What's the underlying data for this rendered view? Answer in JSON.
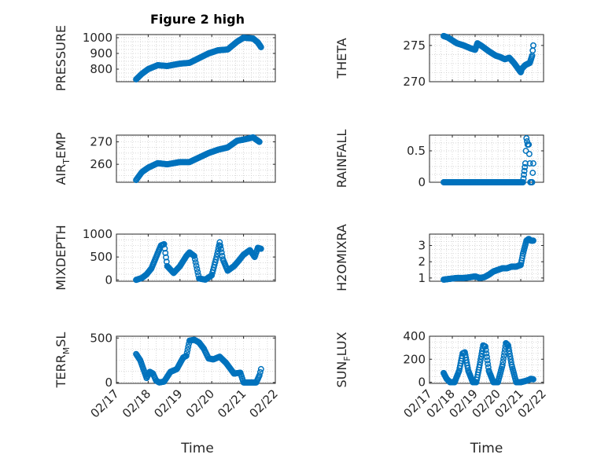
{
  "figure_title": "Figure 2 high",
  "colors": {
    "marker": "#0072BD",
    "axis": "#262626",
    "grid": "#c8c8c8"
  },
  "chart_data": [
    {
      "type": "scatter",
      "ylabel_main": "PRESSURE",
      "ylabel_sub": "",
      "ylabel_tail": "",
      "xlabel": "",
      "ylim": [
        720,
        1020
      ],
      "yticks": [
        800,
        900,
        1000
      ],
      "grid": "dotted",
      "xlim": [
        "02/17 00:00",
        "02/22 00:00"
      ],
      "xticks": [
        "02/17",
        "02/18",
        "02/19",
        "02/20",
        "02/21",
        "02/22"
      ],
      "series": [
        {
          "x_day": [
            17.62,
            17.8,
            18.0,
            18.3,
            18.6,
            19.0,
            19.3,
            19.6,
            19.9,
            20.2,
            20.5,
            20.8,
            21.0,
            21.3,
            21.45,
            21.55
          ],
          "values": [
            735,
            770,
            800,
            825,
            820,
            835,
            840,
            870,
            900,
            920,
            925,
            975,
            1000,
            995,
            970,
            940
          ]
        }
      ]
    },
    {
      "type": "scatter",
      "ylabel_main": "THETA",
      "ylabel_sub": "",
      "ylabel_tail": "",
      "xlabel": "",
      "ylim": [
        270,
        276.5
      ],
      "yticks": [
        270,
        275
      ],
      "grid": "dotted",
      "xlim": [
        "02/17 00:00",
        "02/22 00:00"
      ],
      "xticks": [
        "02/17",
        "02/18",
        "02/19",
        "02/20",
        "02/21",
        "02/22"
      ],
      "series": [
        {
          "x_day": [
            17.62,
            17.8,
            18.0,
            18.2,
            18.5,
            18.8,
            19.0,
            19.1,
            19.3,
            19.6,
            19.9,
            20.1,
            20.3,
            20.5,
            20.7,
            21.0,
            21.05,
            21.2,
            21.4,
            21.5,
            21.55
          ],
          "values": [
            276.3,
            276.1,
            275.7,
            275.3,
            275.0,
            274.6,
            274.4,
            275.3,
            274.9,
            274.2,
            273.6,
            273.4,
            273.1,
            273.3,
            272.6,
            271.3,
            271.8,
            272.3,
            272.6,
            273.6,
            275.0
          ]
        }
      ]
    },
    {
      "type": "scatter",
      "ylabel_main": "AIR",
      "ylabel_sub": "T",
      "ylabel_tail": "EMP",
      "xlabel": "",
      "ylim": [
        252,
        273
      ],
      "yticks": [
        260,
        270
      ],
      "grid": "dotted",
      "xlim": [
        "02/17 00:00",
        "02/22 00:00"
      ],
      "xticks": [
        "02/17",
        "02/18",
        "02/19",
        "02/20",
        "02/21",
        "02/22"
      ],
      "series": [
        {
          "x_day": [
            17.62,
            17.8,
            18.0,
            18.3,
            18.6,
            19.0,
            19.3,
            19.6,
            19.9,
            20.2,
            20.5,
            20.8,
            21.0,
            21.3,
            21.5
          ],
          "values": [
            253,
            256.5,
            258.5,
            260.5,
            260.0,
            261.0,
            261.0,
            263.0,
            265.0,
            266.5,
            267.5,
            270.5,
            271.0,
            272.0,
            270.0
          ]
        }
      ]
    },
    {
      "type": "scatter",
      "ylabel_main": "RAINFALL",
      "ylabel_sub": "",
      "ylabel_tail": "",
      "xlabel": "",
      "ylim": [
        0,
        0.75
      ],
      "yticks": [
        0,
        0.5
      ],
      "grid": "dotted",
      "xlim": [
        "02/17 00:00",
        "02/22 00:00"
      ],
      "xticks": [
        "02/17",
        "02/18",
        "02/19",
        "02/20",
        "02/21",
        "02/22"
      ],
      "series": [
        {
          "x_day": [
            17.62,
            17.9,
            18.2,
            18.5,
            18.8,
            19.1,
            19.4,
            19.7,
            20.0,
            20.3,
            20.6,
            20.9,
            21.1,
            21.2,
            21.25,
            21.3,
            21.35,
            21.4,
            21.42,
            21.5,
            21.55
          ],
          "values": [
            0,
            0,
            0,
            0,
            0,
            0,
            0,
            0,
            0,
            0,
            0,
            0,
            0,
            0.3,
            0.7,
            0.6,
            0.6,
            0.3,
            0,
            0,
            0.3
          ]
        }
      ]
    },
    {
      "type": "scatter",
      "ylabel_main": "MIXDEPTH",
      "ylabel_sub": "",
      "ylabel_tail": "",
      "xlabel": "",
      "ylim": [
        -30,
        1000
      ],
      "yticks": [
        0,
        500,
        1000
      ],
      "grid": "dotted",
      "xlim": [
        "02/17 00:00",
        "02/22 00:00"
      ],
      "xticks": [
        "02/17",
        "02/18",
        "02/19",
        "02/20",
        "02/21",
        "02/22"
      ],
      "series": [
        {
          "x_day": [
            17.62,
            17.8,
            17.95,
            18.1,
            18.25,
            18.4,
            18.5,
            18.6,
            18.8,
            19.0,
            19.2,
            19.3,
            19.45,
            19.6,
            19.8,
            20.0,
            20.15,
            20.25,
            20.35,
            20.5,
            20.7,
            20.85,
            21.0,
            21.2,
            21.35,
            21.45,
            21.55
          ],
          "values": [
            0,
            40,
            120,
            250,
            500,
            750,
            780,
            300,
            150,
            300,
            520,
            600,
            520,
            30,
            5,
            100,
            500,
            820,
            450,
            200,
            300,
            420,
            550,
            650,
            500,
            700,
            680
          ]
        }
      ]
    },
    {
      "type": "scatter",
      "ylabel_main": "H2OMIXRA",
      "ylabel_sub": "",
      "ylabel_tail": "",
      "xlabel": "",
      "ylim": [
        0.8,
        3.7
      ],
      "yticks": [
        1,
        2,
        3
      ],
      "grid": "dotted",
      "xlim": [
        "02/17 00:00",
        "02/22 00:00"
      ],
      "xticks": [
        "02/17",
        "02/18",
        "02/19",
        "02/20",
        "02/21",
        "02/22"
      ],
      "series": [
        {
          "x_day": [
            17.62,
            17.9,
            18.2,
            18.5,
            18.8,
            19.0,
            19.2,
            19.4,
            19.6,
            19.8,
            20.0,
            20.2,
            20.4,
            20.6,
            20.8,
            21.0,
            21.1,
            21.25,
            21.35,
            21.45,
            21.55
          ],
          "values": [
            0.9,
            0.95,
            1.0,
            1.0,
            1.05,
            1.1,
            1.0,
            1.05,
            1.2,
            1.4,
            1.5,
            1.6,
            1.6,
            1.7,
            1.7,
            1.8,
            2.5,
            3.3,
            3.4,
            3.3,
            3.3
          ]
        }
      ]
    },
    {
      "type": "scatter",
      "ylabel_main": "TERR",
      "ylabel_sub": "M",
      "ylabel_tail": "SL",
      "xlabel": "Time",
      "ylim": [
        -10,
        520
      ],
      "yticks": [
        0,
        500
      ],
      "grid": "dotted",
      "xlim": [
        "02/17 00:00",
        "02/22 00:00"
      ],
      "xticks": [
        "02/17",
        "02/18",
        "02/19",
        "02/20",
        "02/21",
        "02/22"
      ],
      "series": [
        {
          "x_day": [
            17.62,
            17.75,
            17.85,
            17.95,
            18.05,
            18.15,
            18.25,
            18.35,
            18.5,
            18.7,
            18.9,
            19.1,
            19.2,
            19.3,
            19.45,
            19.6,
            19.75,
            19.9,
            20.05,
            20.25,
            20.45,
            20.7,
            20.9,
            21.0,
            21.2,
            21.4,
            21.5,
            21.55
          ],
          "values": [
            320,
            250,
            150,
            50,
            120,
            100,
            20,
            0,
            10,
            120,
            150,
            280,
            300,
            470,
            480,
            450,
            380,
            270,
            260,
            290,
            220,
            100,
            110,
            0,
            0,
            0,
            80,
            150
          ]
        }
      ]
    },
    {
      "type": "scatter",
      "ylabel_main": "SUN",
      "ylabel_sub": "F",
      "ylabel_tail": "LUX",
      "xlabel": "Time",
      "ylim": [
        -10,
        400
      ],
      "yticks": [
        0,
        200,
        400
      ],
      "grid": "dotted",
      "xlim": [
        "02/17 00:00",
        "02/22 00:00"
      ],
      "xticks": [
        "02/17",
        "02/18",
        "02/19",
        "02/20",
        "02/21",
        "02/22"
      ],
      "series": [
        {
          "x_day": [
            17.62,
            17.75,
            17.9,
            18.1,
            18.3,
            18.45,
            18.55,
            18.7,
            18.9,
            19.05,
            19.2,
            19.35,
            19.45,
            19.6,
            19.8,
            20.0,
            20.2,
            20.35,
            20.45,
            20.6,
            20.8,
            21.0,
            21.2,
            21.35,
            21.45,
            21.55
          ],
          "values": [
            80,
            30,
            0,
            0,
            100,
            250,
            260,
            100,
            0,
            0,
            150,
            320,
            310,
            100,
            0,
            0,
            150,
            340,
            320,
            150,
            0,
            0,
            10,
            20,
            30,
            25
          ]
        }
      ]
    }
  ]
}
